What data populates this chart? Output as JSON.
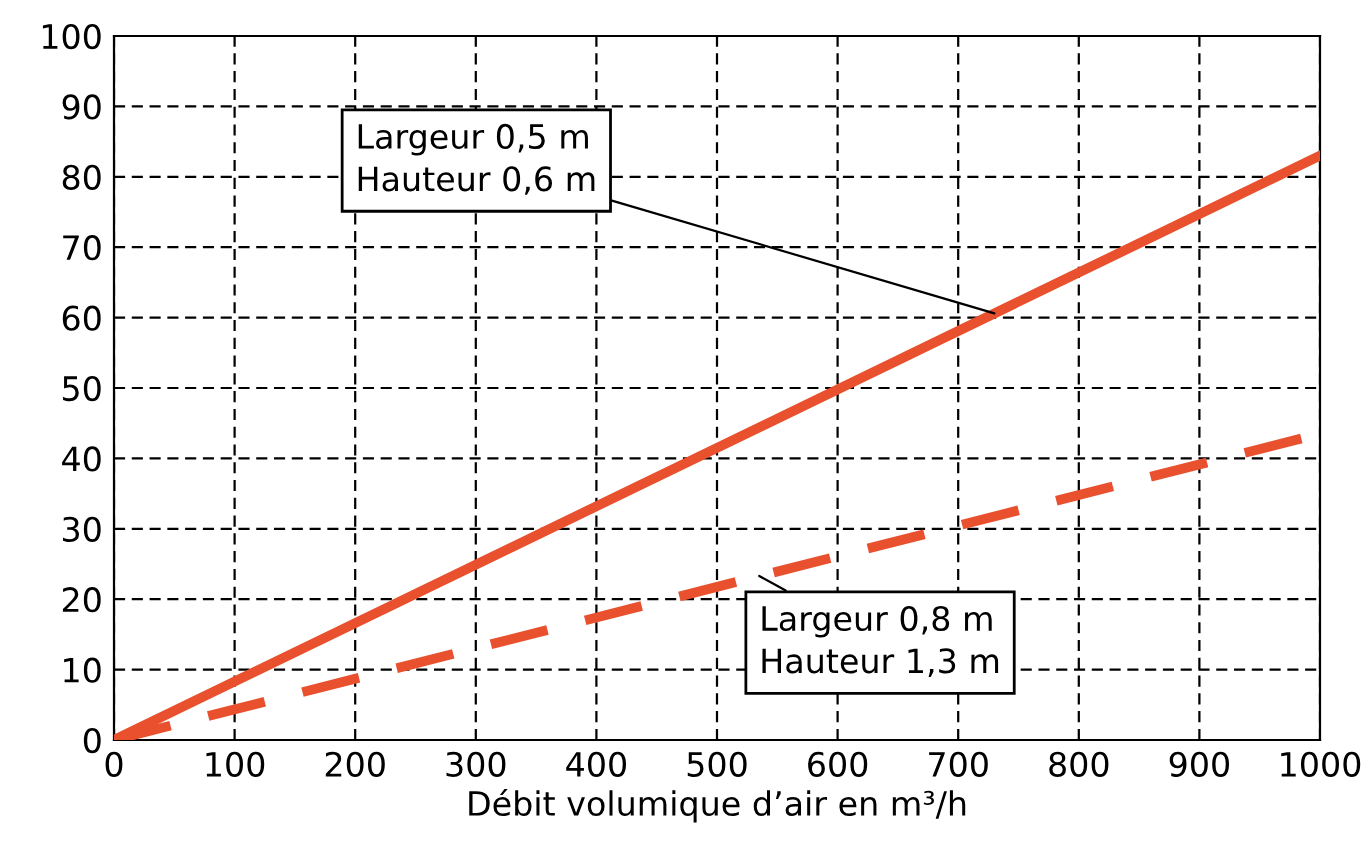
{
  "chart_data": {
    "type": "line",
    "xlabel": "Débit volumique d’air en m³/h",
    "x": [
      0,
      1000
    ],
    "series": [
      {
        "color": "#e8502e",
        "values": [
          0,
          83
        ],
        "line_style": "solid"
      },
      {
        "color": "#e8502e",
        "values": [
          0,
          43.5
        ],
        "line_style": "dashed"
      }
    ],
    "xlim": [
      0,
      1000
    ],
    "xticks": [
      0,
      100,
      200,
      300,
      400,
      500,
      600,
      700,
      800,
      900,
      1000
    ],
    "ylim": [
      0,
      100
    ],
    "yticks": [
      0,
      10,
      20,
      30,
      40,
      50,
      60,
      70,
      80,
      90,
      100
    ],
    "grid": true,
    "marker": "none",
    "annotations": [
      {
        "text": "Largeur 0,5 m\nHauteur 0,6 m",
        "x": 730,
        "y": 60.6
      },
      {
        "text": "Largeur 0,8 m\nHauteur 1,3 m",
        "x": 535,
        "y": 23.3
      }
    ]
  }
}
